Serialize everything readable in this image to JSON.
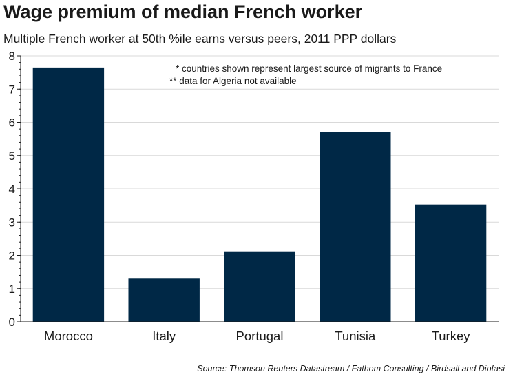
{
  "header": {
    "title": "Wage premium of median French worker",
    "subtitle": "Multiple French worker at 50th %ile earns versus peers, 2011 PPP dollars"
  },
  "footer": {
    "source": "Source: Thomson Reuters Datastream / Fathom Consulting / Birdsall and Diofasi"
  },
  "notes": [
    "* countries shown represent largest source of migrants to France",
    "** data for Algeria not available"
  ],
  "colors": {
    "bar": "#002846",
    "grid": "#d9d9d9",
    "axis": "#1a1a1a"
  },
  "chart_data": {
    "type": "bar",
    "title": "Wage premium of median French worker",
    "subtitle": "Multiple French worker at 50th %ile earns versus peers, 2011 PPP dollars",
    "categories": [
      "Morocco",
      "Italy",
      "Portugal",
      "Tunisia",
      "Turkey"
    ],
    "values": [
      7.65,
      1.3,
      2.12,
      5.7,
      3.53
    ],
    "ylim": [
      0,
      8
    ],
    "yticks": [
      "0",
      "1",
      "2",
      "3",
      "4",
      "5",
      "6",
      "7",
      "8"
    ],
    "ytick_values": [
      0,
      1,
      2,
      3,
      4,
      5,
      6,
      7,
      8
    ],
    "grid": true,
    "legend": "none"
  }
}
